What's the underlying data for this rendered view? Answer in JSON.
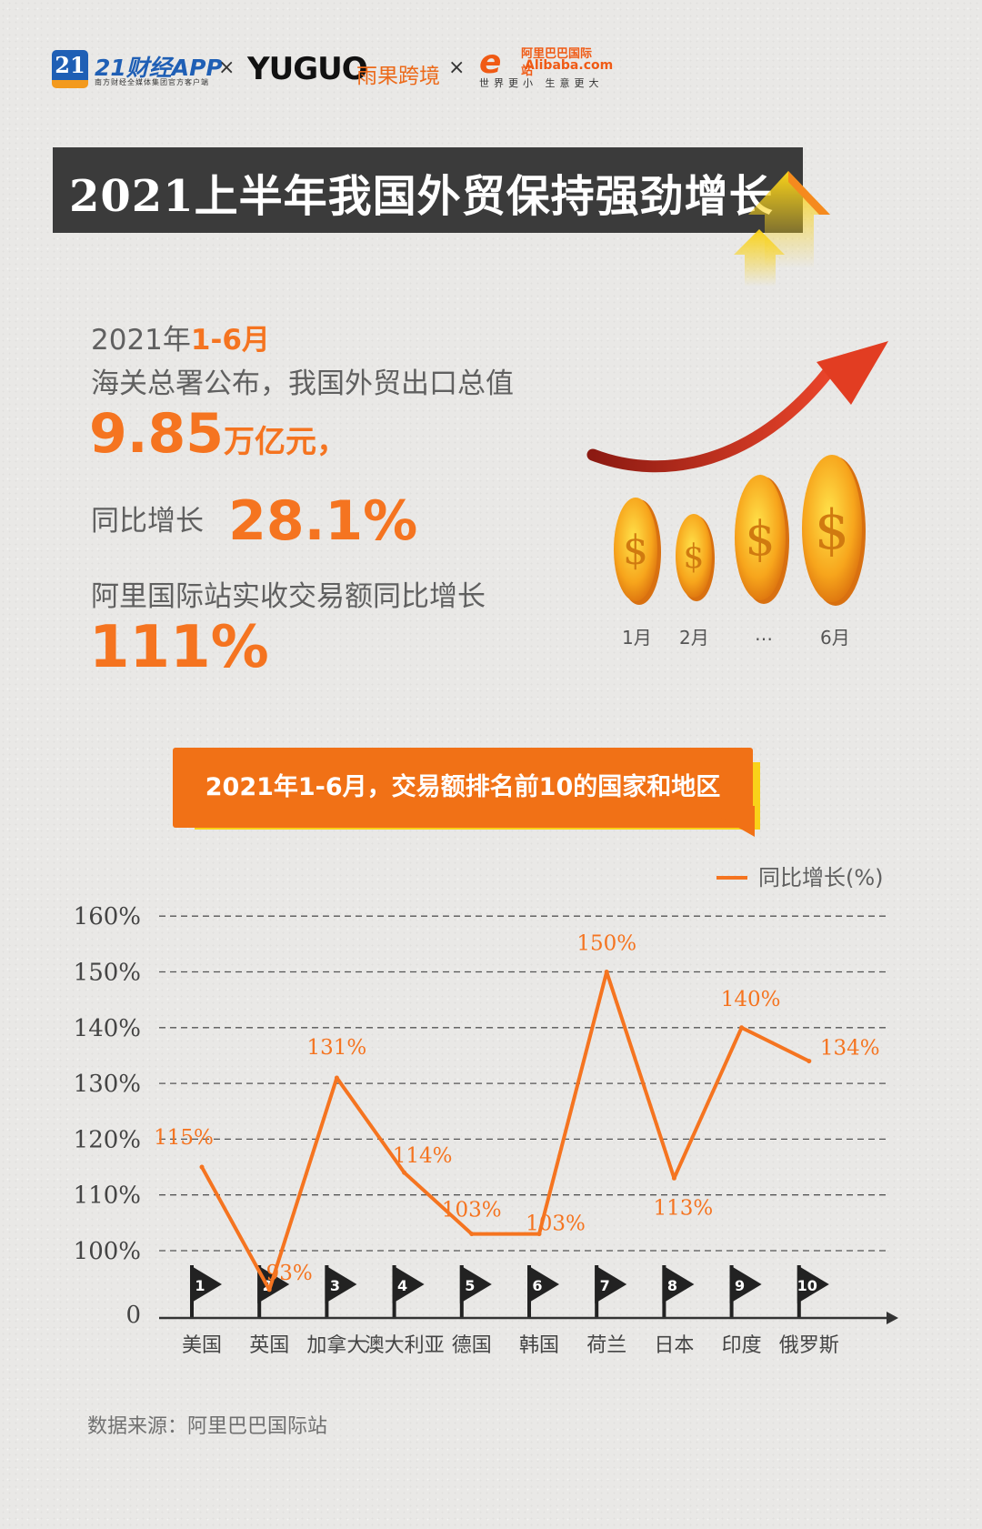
{
  "logos": {
    "brand1_num": "21",
    "brand1_name": "21财经APP",
    "brand1_tagline": "南方财经全媒体集团官方客户端",
    "brand2_name": "YUGUO",
    "brand2_cn": "雨果跨境",
    "brand3_cn": "阿里巴巴国际站",
    "brand3_en": "Alibaba.com",
    "brand3_slogan": "世界更小 生意更大",
    "separator": "×"
  },
  "title": "2021上半年我国外贸保持强劲增长",
  "stats": {
    "period_prefix": "2021年",
    "period_highlight": "1-6月",
    "line2": "海关总署公布，我国外贸出口总值",
    "export_value": "9.85",
    "export_unit": "万亿元，",
    "growth_label": "同比增长",
    "growth_value": "28.1%",
    "ali_label": "阿里国际站实收交易额同比增长",
    "ali_value": "111%"
  },
  "coins": {
    "labels": [
      "1月",
      "2月",
      "…",
      "6月"
    ],
    "colors": {
      "coin": "#f5a81c",
      "coin_dark": "#e07a10",
      "arrow": "#d8321e"
    }
  },
  "section_header": "2021年1-6月，交易额排名前10的国家和地区",
  "chart_data": {
    "type": "line",
    "legend": "同比增长(%)",
    "y_ticks": [
      "0",
      "100%",
      "110%",
      "120%",
      "130%",
      "140%",
      "150%",
      "160%"
    ],
    "categories": [
      "美国",
      "英国",
      "加拿大",
      "澳大利亚",
      "德国",
      "韩国",
      "荷兰",
      "日本",
      "印度",
      "俄罗斯"
    ],
    "ranks": [
      "1",
      "2",
      "3",
      "4",
      "5",
      "6",
      "7",
      "8",
      "9",
      "10"
    ],
    "values": [
      115,
      93,
      131,
      114,
      103,
      103,
      150,
      113,
      140,
      134
    ],
    "value_labels": [
      "115%",
      "93%",
      "131%",
      "114%",
      "103%",
      "103%",
      "150%",
      "113%",
      "140%",
      "134%"
    ],
    "grid": true,
    "color": "#f57420"
  },
  "source": "数据来源：阿里巴巴国际站"
}
